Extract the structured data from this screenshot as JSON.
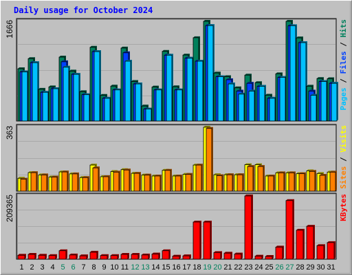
{
  "chart_data": {
    "type": "bar",
    "title": "Daily usage for October 2024",
    "categories": [
      "1",
      "2",
      "3",
      "4",
      "5",
      "6",
      "7",
      "8",
      "9",
      "10",
      "11",
      "12",
      "13",
      "14",
      "15",
      "16",
      "17",
      "18",
      "19",
      "20",
      "21",
      "22",
      "23",
      "24",
      "25",
      "26",
      "27",
      "28",
      "29",
      "30",
      "31"
    ],
    "weekend_days": [
      "5",
      "6",
      "12",
      "13",
      "19",
      "20",
      "26",
      "27"
    ],
    "colors": {
      "hits": "#00805c",
      "files": "#0040ff",
      "pages": "#00c0ff",
      "visits": "#ffff00",
      "sites": "#ff8000",
      "kbytes": "#ff0000",
      "weekend_label": "#00805c",
      "weekday_label": "#000000",
      "title": "#0000ff",
      "plot_background": "#c0c0c0"
    },
    "panels": [
      {
        "id": "hits",
        "ymax_label": "1666",
        "ymax": 1666,
        "series": [
          {
            "name": "Hits",
            "values": [
              873,
              1042,
              530,
              570,
              1068,
              834,
              490,
              1232,
              428,
              583,
              1219,
              660,
              250,
              567,
              1164,
              572,
              1102,
              1392,
              1666,
              802,
              741,
              554,
              767,
              640,
              431,
              789,
              1666,
              1389,
              581,
              710,
              707
            ]
          },
          {
            "name": "Files",
            "values": [
              820,
              975,
              480,
              540,
              990,
              780,
              440,
              1160,
              380,
              520,
              1140,
              620,
              200,
              520,
              1100,
              520,
              1050,
              1000,
              1595,
              740,
              690,
              500,
              630,
              580,
              380,
              730,
              1593,
              1310,
              500,
              660,
              630
            ]
          },
          {
            "name": "Pages",
            "values": [
              820,
              975,
              480,
              540,
              900,
              780,
              440,
              1160,
              380,
              520,
              1000,
              620,
              200,
              520,
              1100,
              520,
              1050,
              1000,
              1595,
              740,
              620,
              450,
              500,
              580,
              380,
              730,
              1593,
              1310,
              430,
              660,
              630
            ]
          }
        ],
        "side_labels": [
          {
            "text": "Pages",
            "color": "#00c0ff"
          },
          {
            "text": " / ",
            "color": "#000000"
          },
          {
            "text": "Files",
            "color": "#0040ff"
          },
          {
            "text": " / ",
            "color": "#000000"
          },
          {
            "text": "Hits",
            "color": "#00805c"
          }
        ]
      },
      {
        "id": "visits",
        "ymax_label": "363",
        "ymax": 363,
        "series": [
          {
            "name": "Visits",
            "values": [
              73,
              105,
              92,
              80,
              109,
              98,
              77,
              148,
              82,
              111,
              122,
              101,
              91,
              86,
              118,
              86,
              95,
              148,
              363,
              93,
              93,
              93,
              150,
              150,
              86,
              104,
              104,
              99,
              115,
              100,
              108
            ]
          },
          {
            "name": "Sites",
            "values": [
              68,
              105,
              92,
              80,
              109,
              98,
              77,
              132,
              82,
              108,
              120,
              101,
              91,
              86,
              118,
              86,
              95,
              148,
              356,
              88,
              93,
              93,
              140,
              140,
              86,
              104,
              104,
              99,
              112,
              90,
              108
            ]
          }
        ],
        "side_labels": [
          {
            "text": "Sites",
            "color": "#ff8000"
          },
          {
            "text": " / ",
            "color": "#000000"
          },
          {
            "text": "Visits",
            "color": "#ffff00"
          }
        ]
      },
      {
        "id": "kbytes",
        "ymax_label": "209365",
        "ymax": 209365,
        "series": [
          {
            "name": "KBytes",
            "values": [
              13000,
              16000,
              13000,
              12000,
              28000,
              14000,
              11000,
              23000,
              12000,
              12000,
              16000,
              16000,
              14000,
              17000,
              28000,
              10000,
              11000,
              123000,
              123000,
              22000,
              20000,
              17000,
              209365,
              10000,
              9000,
              40000,
              194000,
              96000,
              109000,
              45000,
              55000
            ]
          }
        ],
        "side_labels": [
          {
            "text": "KBytes",
            "color": "#ff0000"
          }
        ]
      }
    ]
  }
}
